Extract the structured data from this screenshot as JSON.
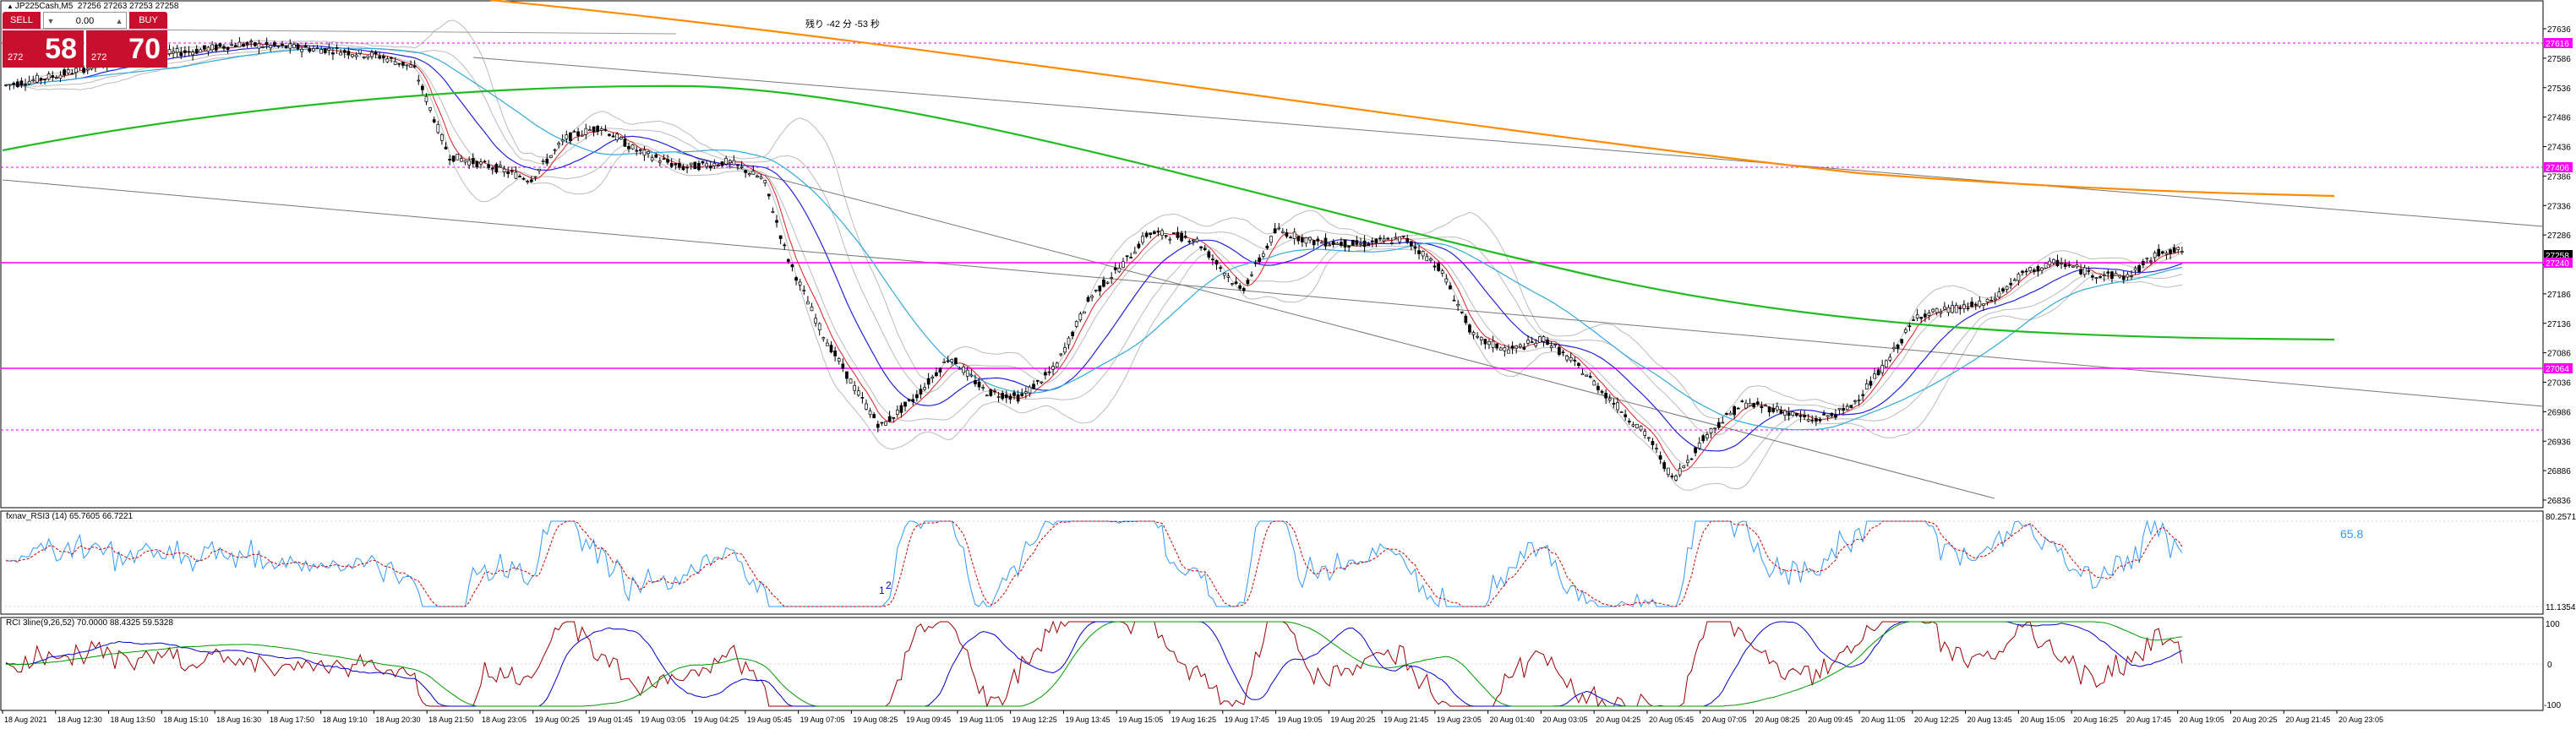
{
  "symbol_line": {
    "symbol": "JP225Cash,M5",
    "quotes": "27256 27263 27253 27258"
  },
  "trade_panel": {
    "sell_label": "SELL",
    "buy_label": "BUY",
    "volume": "0.00",
    "sell_price_small": "272",
    "sell_price_big": "58",
    "buy_price_small": "272",
    "buy_price_big": "70"
  },
  "countdown_text": "残り -42 分 -53 秒",
  "price_axis": {
    "labels": [
      "27636",
      "27586",
      "27536",
      "27486",
      "27436",
      "27386",
      "27336",
      "27286",
      "27236",
      "27186",
      "27136",
      "27086",
      "27036",
      "26986",
      "26936",
      "26886",
      "26836"
    ],
    "highlight_labels": [
      {
        "text": "27616",
        "color": "#ff00ff"
      },
      {
        "text": "27406",
        "color": "#ff00ff"
      },
      {
        "text": "27258",
        "color": "#000000"
      },
      {
        "text": "27240",
        "color": "#ff00ff"
      },
      {
        "text": "27064",
        "color": "#ff00ff"
      }
    ]
  },
  "rsi_panel": {
    "title": "fxnav_RSI3 (14) 65.7605 66.7221",
    "axis_top": "80.2571",
    "axis_bottom": "11.1354",
    "value_label": "65.8",
    "markers": [
      "1",
      "2"
    ]
  },
  "rci_panel": {
    "title": "RCI 3line(9,26,52) 70.0000 88.4325 59.5328",
    "axis_top": "100",
    "axis_zero": "0",
    "axis_bottom": "-100"
  },
  "time_axis": [
    "18 Aug 2021",
    "18 Aug 12:30",
    "18 Aug 13:50",
    "18 Aug 15:10",
    "18 Aug 16:30",
    "18 Aug 17:50",
    "18 Aug 19:10",
    "18 Aug 20:30",
    "18 Aug 21:50",
    "18 Aug 23:05",
    "19 Aug 00:25",
    "19 Aug 01:45",
    "19 Aug 03:05",
    "19 Aug 04:25",
    "19 Aug 05:45",
    "19 Aug 07:05",
    "19 Aug 08:25",
    "19 Aug 09:45",
    "19 Aug 11:05",
    "19 Aug 12:25",
    "19 Aug 13:45",
    "19 Aug 15:05",
    "19 Aug 16:25",
    "19 Aug 17:45",
    "19 Aug 19:05",
    "19 Aug 20:25",
    "19 Aug 21:45",
    "19 Aug 23:05",
    "20 Aug 01:40",
    "20 Aug 03:05",
    "20 Aug 04:25",
    "20 Aug 05:45",
    "20 Aug 07:05",
    "20 Aug 08:25",
    "20 Aug 09:45",
    "20 Aug 11:05",
    "20 Aug 12:25",
    "20 Aug 13:45",
    "20 Aug 15:05",
    "20 Aug 16:25",
    "20 Aug 17:45",
    "20 Aug 19:05",
    "20 Aug 20:25",
    "20 Aug 21:45",
    "20 Aug 23:05"
  ],
  "colors": {
    "bull_bear": "#000000",
    "ma_orange": "#ff8c00",
    "ma_green": "#22bb22",
    "ma_blue": "#2222dd",
    "ma_skyblue": "#33aadd",
    "ma_red": "#dd2222",
    "magenta": "#ff00ff",
    "rsi_blue": "#3399ff",
    "rsi_red": "#cc0000",
    "rci_red": "#990000",
    "rci_blue": "#0000cc",
    "rci_green": "#009900"
  }
}
